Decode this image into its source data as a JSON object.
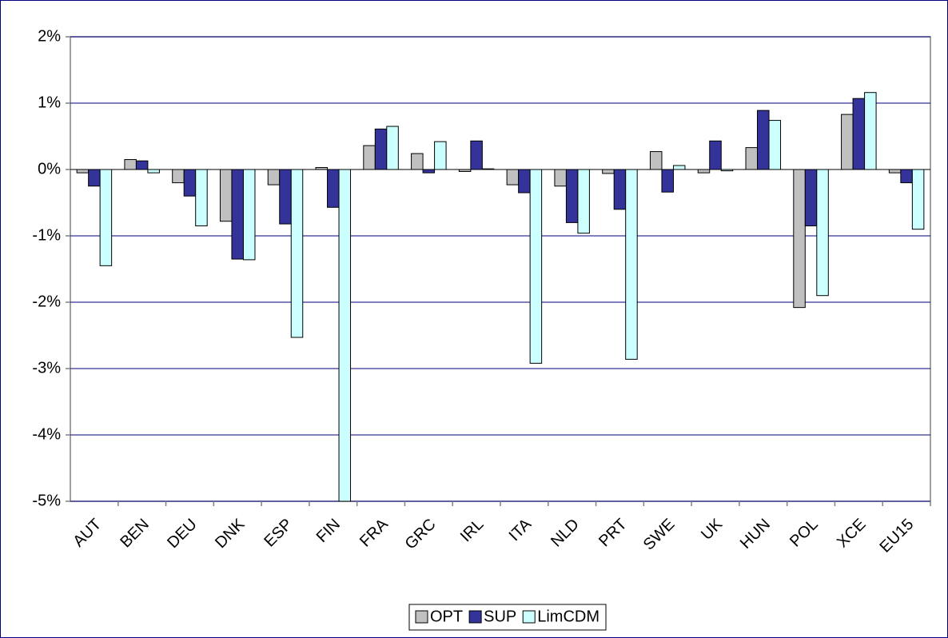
{
  "chart_data": {
    "type": "bar",
    "categories": [
      "AUT",
      "BEN",
      "DEU",
      "DNK",
      "ESP",
      "FIN",
      "FRA",
      "GRC",
      "IRL",
      "ITA",
      "NLD",
      "PRT",
      "SWE",
      "UK",
      "HUN",
      "POL",
      "XCE",
      "EU15"
    ],
    "series": [
      {
        "name": "OPT",
        "color": "#c0c0c0",
        "values": [
          -0.05,
          0.15,
          -0.2,
          -0.78,
          -0.23,
          0.03,
          0.36,
          0.24,
          -0.03,
          -0.23,
          -0.25,
          -0.06,
          0.27,
          -0.05,
          0.33,
          -2.08,
          0.83,
          -0.05
        ]
      },
      {
        "name": "SUP",
        "color": "#333399",
        "values": [
          -0.25,
          0.13,
          -0.4,
          -1.35,
          -0.82,
          -0.57,
          0.61,
          -0.05,
          0.43,
          -0.35,
          -0.8,
          -0.6,
          -0.34,
          0.43,
          0.89,
          -0.85,
          1.07,
          -0.2
        ]
      },
      {
        "name": "LimCDM",
        "color": "#ccffff",
        "values": [
          -1.45,
          -0.05,
          -0.85,
          -1.36,
          -2.53,
          -5.0,
          0.65,
          0.42,
          0.01,
          -2.92,
          -0.96,
          -2.86,
          0.06,
          -0.02,
          0.74,
          -1.9,
          1.16,
          -0.9
        ]
      }
    ],
    "ylim": [
      -5,
      2
    ],
    "yticks": [
      {
        "value": 2,
        "label": "2%"
      },
      {
        "value": 1,
        "label": "1%"
      },
      {
        "value": 0,
        "label": "0%"
      },
      {
        "value": -1,
        "label": "-1%"
      },
      {
        "value": -2,
        "label": "-2%"
      },
      {
        "value": -3,
        "label": "-3%"
      },
      {
        "value": -4,
        "label": "-4%"
      },
      {
        "value": -5,
        "label": "-5%"
      }
    ],
    "grid": true,
    "legend": "bottom"
  }
}
